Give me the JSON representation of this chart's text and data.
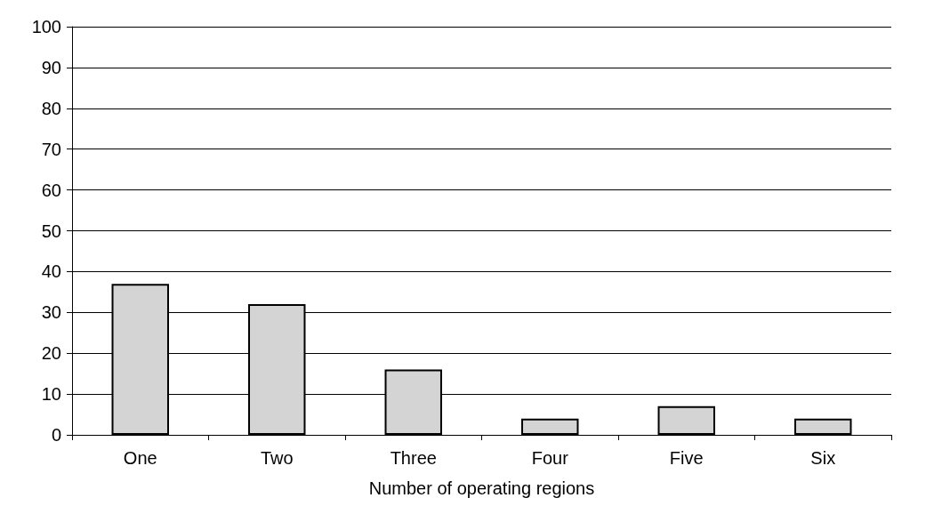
{
  "chart_data": {
    "type": "bar",
    "xlabel": "Number of operating regions",
    "categories": [
      "One",
      "Two",
      "Three",
      "Four",
      "Five",
      "Six"
    ],
    "values": [
      37,
      32,
      16,
      4,
      7,
      4
    ],
    "color": "#d4d4d4",
    "ylim": [
      0,
      100
    ],
    "yticks": [
      0,
      10,
      20,
      30,
      40,
      50,
      60,
      70,
      80,
      90,
      100
    ],
    "grid": "y"
  }
}
